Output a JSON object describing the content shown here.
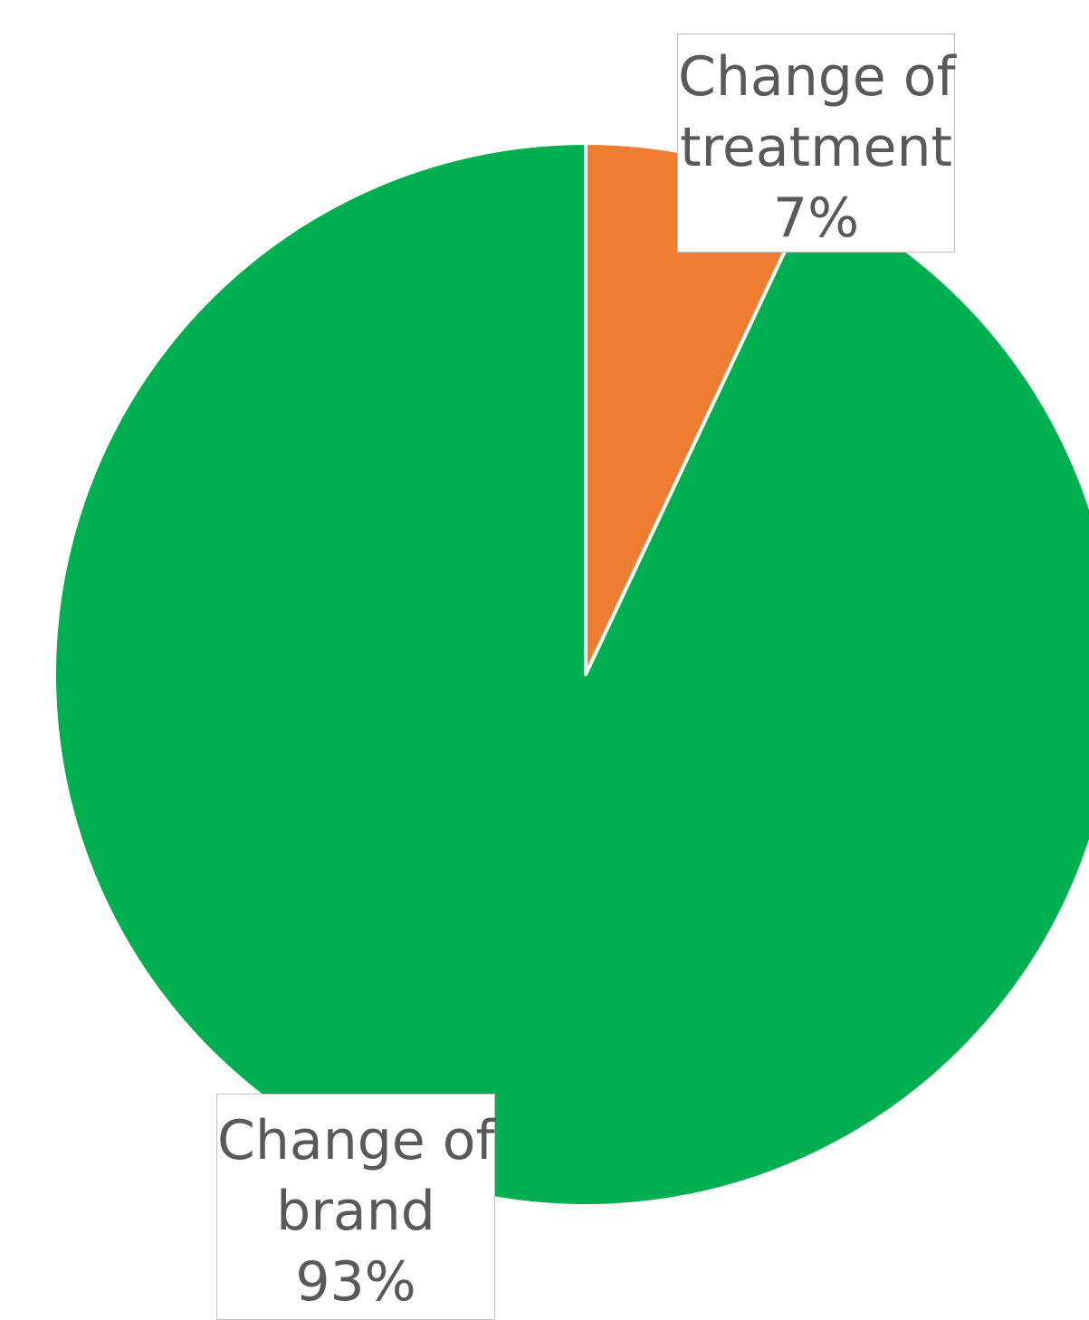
{
  "chart_data": {
    "type": "pie",
    "slices": [
      {
        "name": "Change of treatment",
        "label_line1": "Change of",
        "label_line2": "treatment",
        "percent_label": "7%",
        "value": 7,
        "color": "#ED7D31"
      },
      {
        "name": "Change of brand",
        "label_line1": "Change of",
        "label_line2": "brand",
        "percent_label": "93%",
        "value": 93,
        "color": "#00B050"
      }
    ],
    "title": "",
    "legend": "none"
  }
}
